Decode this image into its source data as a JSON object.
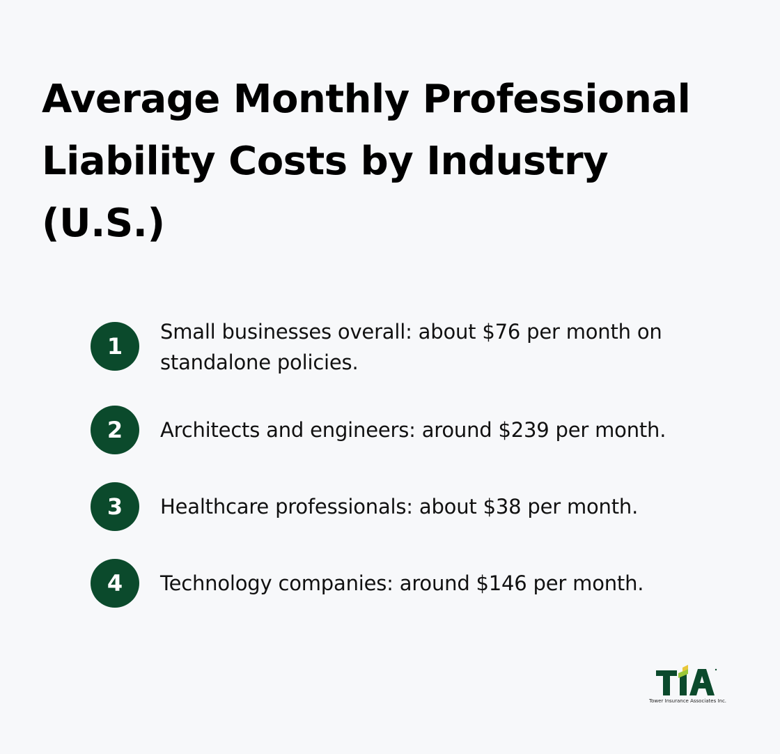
{
  "title": "Average Monthly Professional Liability Costs by Industry (U.S.)",
  "items": [
    {
      "number": "1",
      "text": "Small businesses overall: about $76 per month on standalone policies."
    },
    {
      "number": "2",
      "text": "Architects and engineers: around $239 per month."
    },
    {
      "number": "3",
      "text": "Healthcare professionals: about $38 per month."
    },
    {
      "number": "4",
      "text": "Technology companies: around $146 per month."
    }
  ],
  "logo": {
    "mark": "TIA",
    "caption": "Tower Insurance Associates Inc."
  },
  "colors": {
    "background": "#f7f8fa",
    "badge": "#0b4a2c",
    "logo_green": "#0b4a2c",
    "logo_lime": "#9bc83a",
    "logo_yellow": "#e8c73a"
  }
}
